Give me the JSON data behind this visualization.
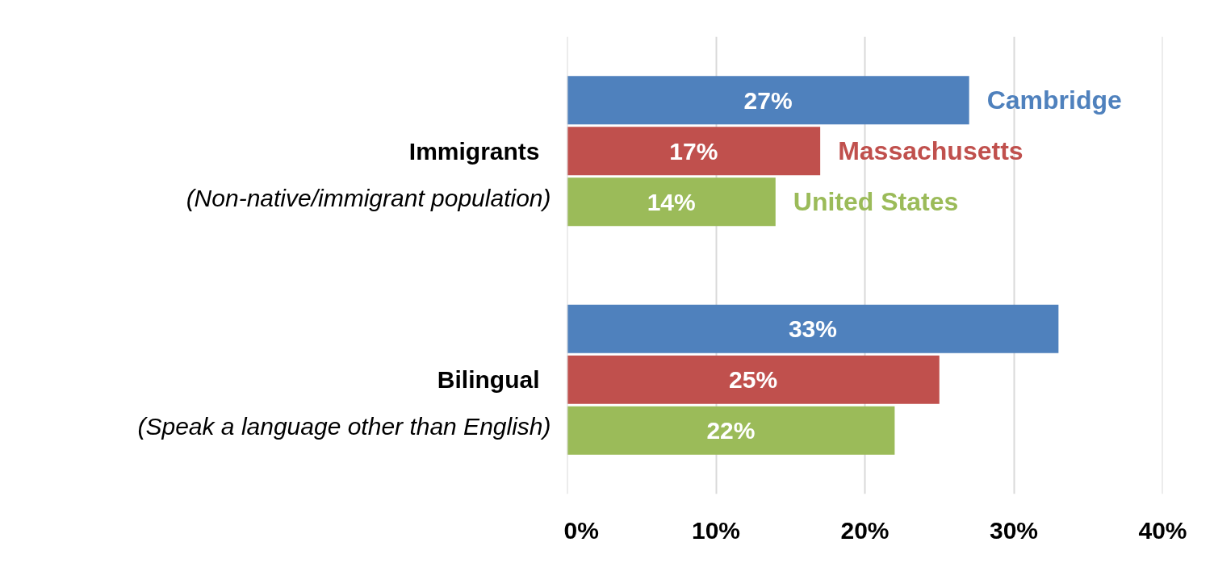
{
  "chart_data": {
    "type": "bar",
    "orientation": "horizontal",
    "categories": [
      "Immigrants\n(Non-native/immigrant population)",
      "Bilingual\n(Speak a language other than English)"
    ],
    "series": [
      {
        "name": "Cambridge",
        "color": "#4f81bd",
        "values": [
          27,
          33
        ],
        "value_labels": [
          "27%",
          "33%"
        ]
      },
      {
        "name": "Massachusetts",
        "color": "#c0504d",
        "values": [
          17,
          25
        ],
        "value_labels": [
          "17%",
          "25%"
        ]
      },
      {
        "name": "United States",
        "color": "#9bbb59",
        "values": [
          14,
          22
        ],
        "value_labels": [
          "14%",
          "22%"
        ]
      }
    ],
    "xlim": [
      0,
      40
    ],
    "xticks": [
      {
        "value": 0,
        "label": "0%"
      },
      {
        "value": 10,
        "label": "10%"
      },
      {
        "value": 20,
        "label": "20%"
      },
      {
        "value": 30,
        "label": "30%"
      },
      {
        "value": 40,
        "label": "40%"
      }
    ],
    "grid": "x",
    "legend": false
  }
}
